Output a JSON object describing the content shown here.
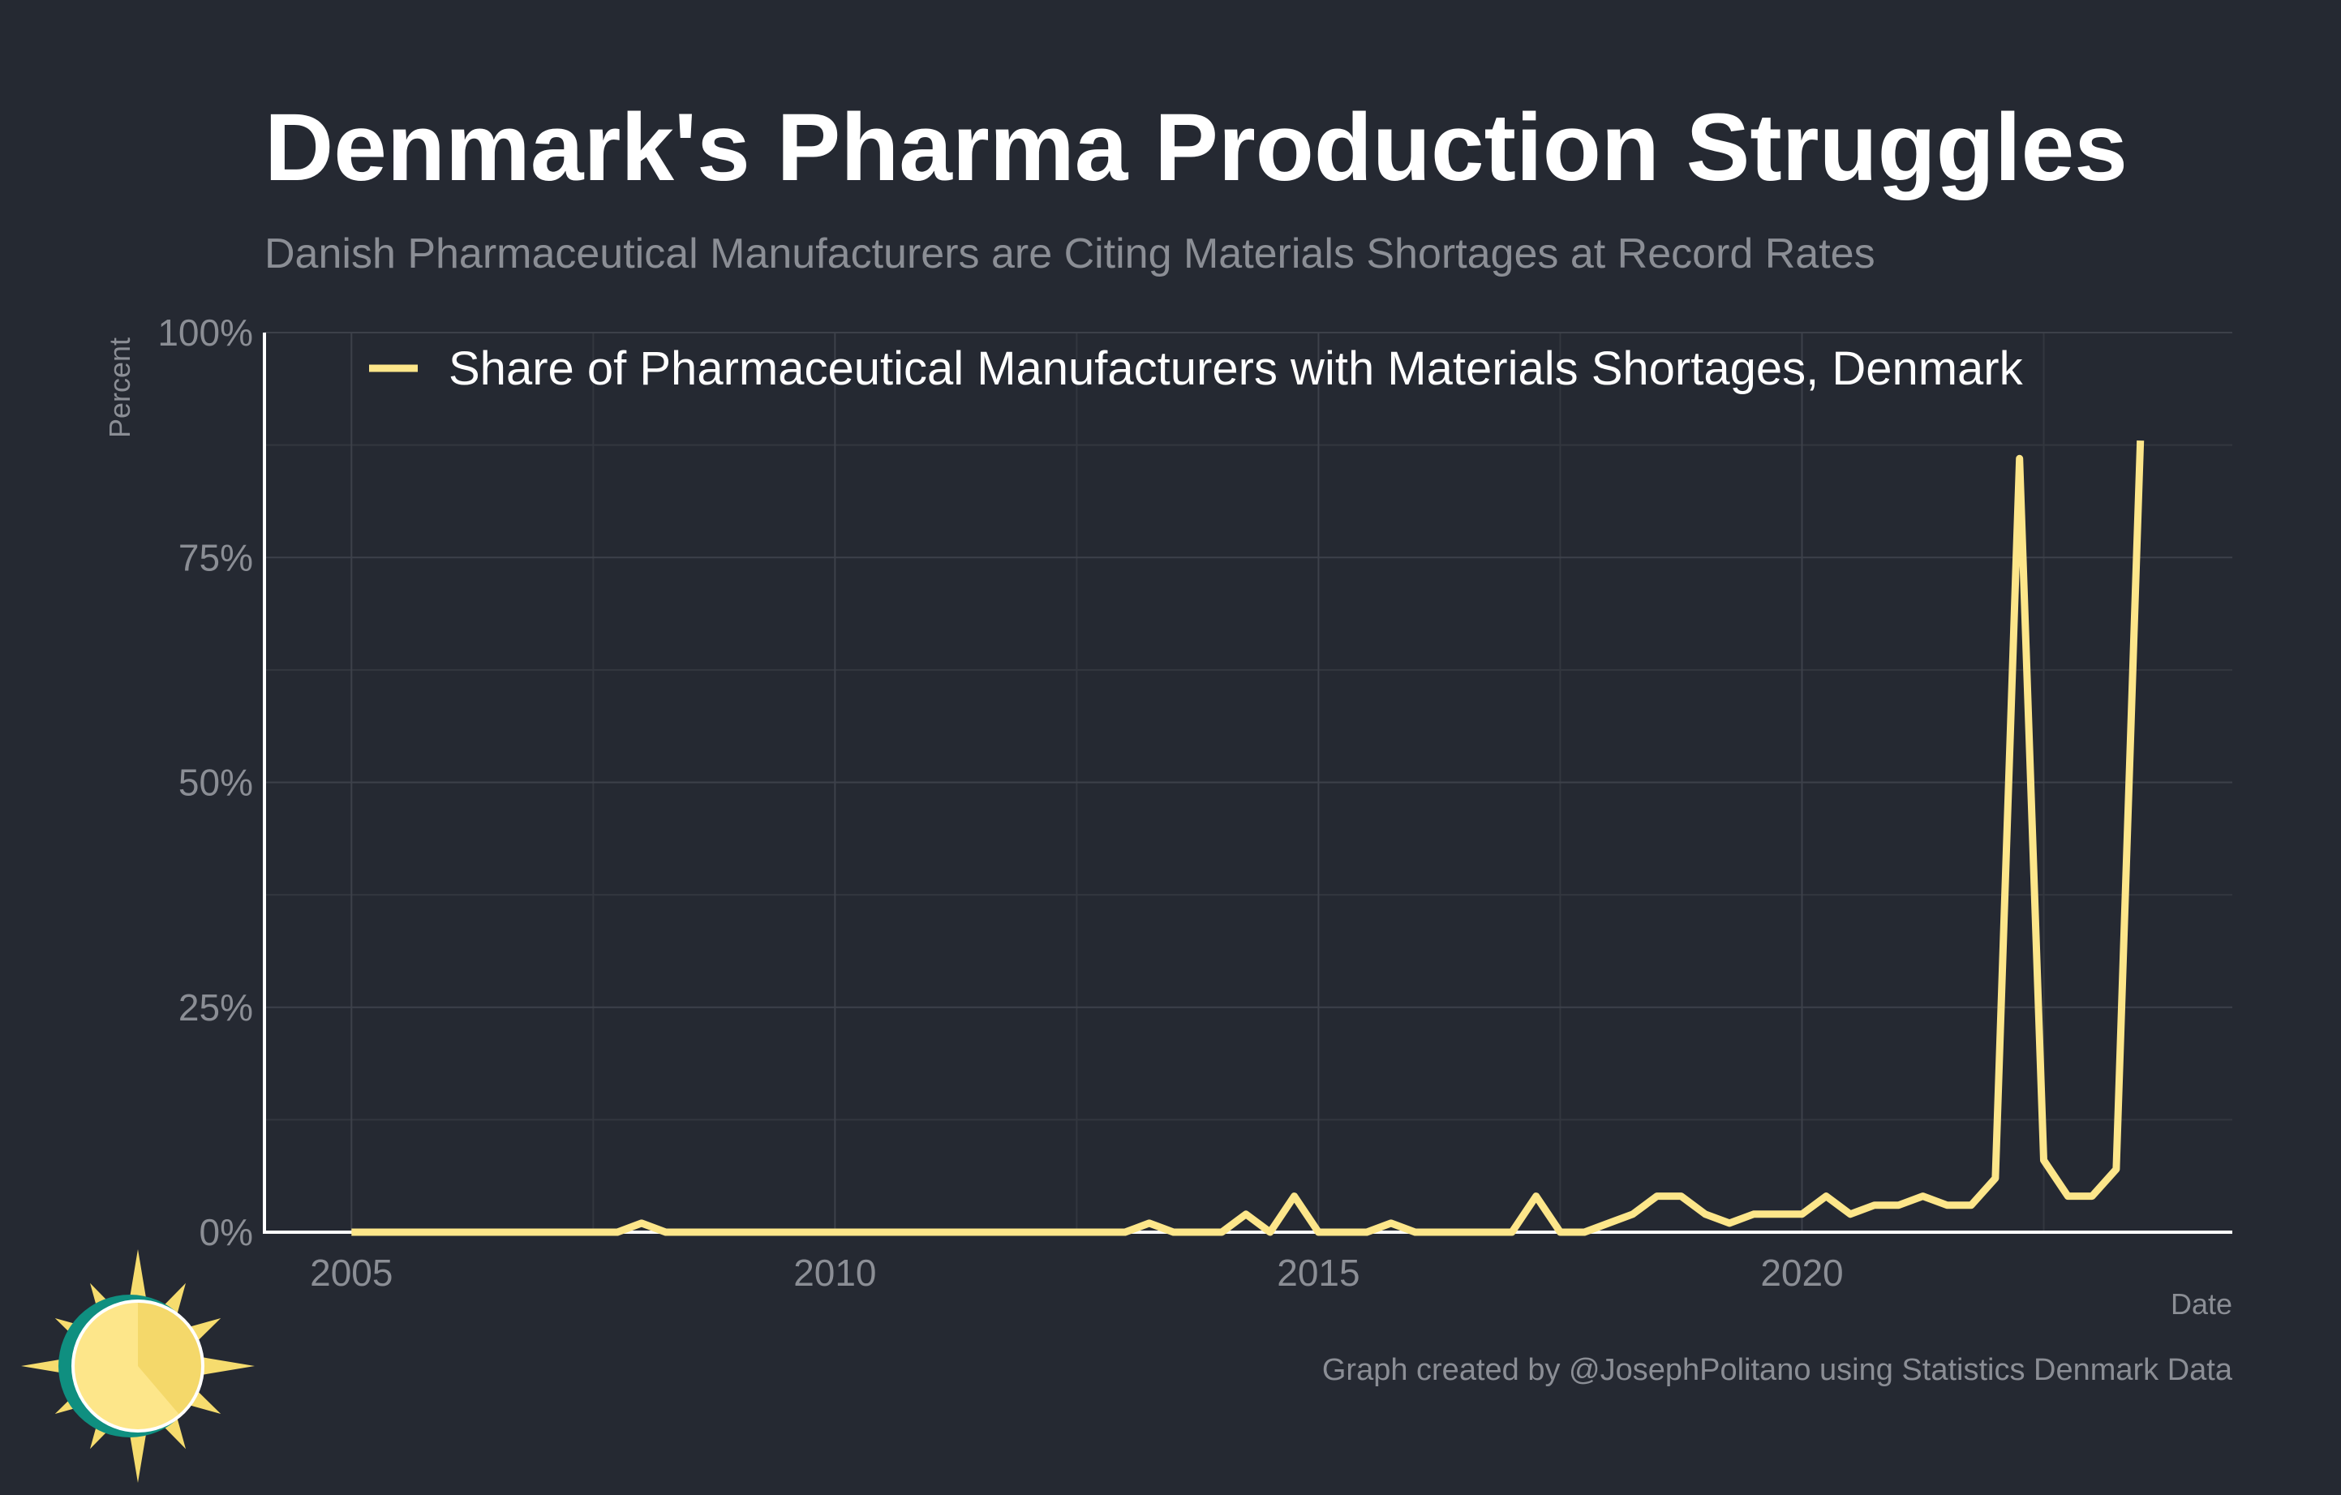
{
  "title": "Denmark's Pharma Production Struggles",
  "subtitle": "Danish Pharmaceutical Manufacturers are Citing Materials Shortages at Record Rates",
  "caption": "Graph created by @JosephPolitano using Statistics Denmark Data",
  "colors": {
    "background": "#252932",
    "line": "#fde68a",
    "logo_teal": "#0f8f80",
    "logo_sun": "#fde68a",
    "logo_rays": "#f6dc6e"
  },
  "icons": {
    "logo": "sun-logo-icon"
  },
  "chart_data": {
    "type": "line",
    "xlabel": "Date",
    "ylabel": "Percent",
    "xlim": [
      2004.1,
      2024.45
    ],
    "ylim": [
      0,
      100
    ],
    "x_ticks": [
      2005,
      2010,
      2015,
      2020
    ],
    "x_tick_labels": [
      "2005",
      "2010",
      "2015",
      "2020"
    ],
    "y_ticks": [
      0,
      25,
      50,
      75,
      100
    ],
    "y_tick_labels": [
      "0%",
      "25%",
      "50%",
      "75%",
      "100%"
    ],
    "grid": true,
    "legend_position": "top-left",
    "series": [
      {
        "name": "Share of Pharmaceutical Manufacturers with Materials Shortages, Denmark",
        "color": "#fde68a",
        "x": [
          2005.0,
          2005.25,
          2005.5,
          2005.75,
          2006.0,
          2006.25,
          2006.5,
          2006.75,
          2007.0,
          2007.25,
          2007.5,
          2007.75,
          2008.0,
          2008.25,
          2008.5,
          2008.75,
          2009.0,
          2009.25,
          2009.5,
          2009.75,
          2010.0,
          2010.25,
          2010.5,
          2010.75,
          2011.0,
          2011.25,
          2011.5,
          2011.75,
          2012.0,
          2012.25,
          2012.5,
          2012.75,
          2013.0,
          2013.25,
          2013.5,
          2013.75,
          2014.0,
          2014.25,
          2014.5,
          2014.75,
          2015.0,
          2015.25,
          2015.5,
          2015.75,
          2016.0,
          2016.25,
          2016.5,
          2016.75,
          2017.0,
          2017.25,
          2017.5,
          2017.75,
          2018.0,
          2018.25,
          2018.5,
          2018.75,
          2019.0,
          2019.25,
          2019.5,
          2019.75,
          2020.0,
          2020.25,
          2020.5,
          2020.75,
          2021.0,
          2021.25,
          2021.5,
          2021.75,
          2022.0,
          2022.25,
          2022.5,
          2022.75,
          2023.0,
          2023.25,
          2023.5
        ],
        "y": [
          0,
          0,
          0,
          0,
          0,
          0,
          0,
          0,
          0,
          0,
          0,
          0,
          1,
          0,
          0,
          0,
          0,
          0,
          0,
          0,
          0,
          0,
          0,
          0,
          0,
          0,
          0,
          0,
          0,
          0,
          0,
          0,
          0,
          1,
          0,
          0,
          0,
          2,
          0,
          4,
          0,
          0,
          0,
          1,
          0,
          0,
          0,
          0,
          0,
          4,
          0,
          0,
          1,
          2,
          4,
          4,
          2,
          1,
          2,
          2,
          2,
          4,
          2,
          3,
          3,
          4,
          3,
          3,
          6,
          86,
          8,
          4,
          4,
          7,
          88
        ]
      }
    ]
  }
}
